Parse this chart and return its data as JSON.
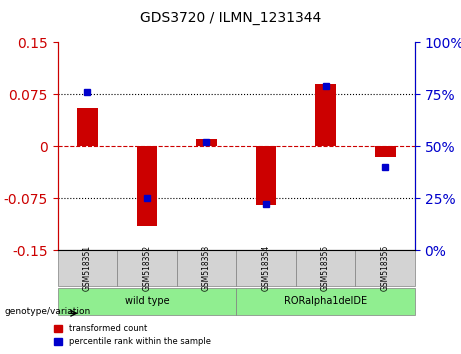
{
  "title": "GDS3720 / ILMN_1231344",
  "categories": [
    "GSM518351",
    "GSM518352",
    "GSM518353",
    "GSM518354",
    "GSM518355",
    "GSM518356"
  ],
  "red_values": [
    0.055,
    -0.115,
    0.01,
    -0.085,
    0.09,
    -0.015
  ],
  "blue_values": [
    76,
    25,
    52,
    22,
    79,
    40
  ],
  "ylim_left": [
    -0.15,
    0.15
  ],
  "ylim_right": [
    0,
    100
  ],
  "yticks_left": [
    -0.15,
    -0.075,
    0,
    0.075,
    0.15
  ],
  "yticks_right": [
    0,
    25,
    50,
    75,
    100
  ],
  "hlines": [
    0.075,
    0,
    -0.075
  ],
  "red_color": "#cc0000",
  "blue_color": "#0000cc",
  "wild_type_indices": [
    0,
    1,
    2
  ],
  "ror_indices": [
    3,
    4,
    5
  ],
  "wild_type_label": "wild type",
  "ror_label": "RORalpha1delDE",
  "genotype_label": "genotype/variation",
  "legend_red": "transformed count",
  "legend_blue": "percentile rank within the sample",
  "group_color_wt": "#90ee90",
  "group_color_ror": "#90ee90",
  "bar_width": 0.35,
  "blue_bar_width": 0.12
}
